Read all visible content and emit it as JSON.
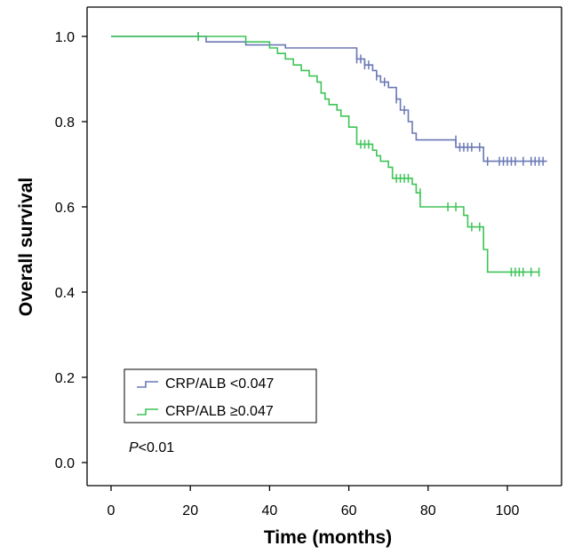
{
  "chart_data": {
    "type": "line",
    "subtype": "kaplan-meier",
    "title": "",
    "xlabel": "Time (months)",
    "ylabel": "Overall survival",
    "xlim": [
      0,
      120
    ],
    "ylim": [
      0,
      1
    ],
    "xticks": [
      0,
      20,
      40,
      60,
      80,
      100,
      120
    ],
    "xtick_labels": [
      "0",
      "20",
      "40",
      "60",
      "80",
      "100",
      "120"
    ],
    "yticks": [
      0.0,
      0.2,
      0.4,
      0.6,
      0.8,
      1.0
    ],
    "ytick_labels": [
      "0.0",
      "0.2",
      "0.4",
      "0.6",
      "0.8",
      "1.0"
    ],
    "grid": false,
    "legend_position": "bottom-left",
    "annotation": {
      "italic": "P",
      "rest": "<0.01"
    },
    "series": [
      {
        "name": "CRP/ALB <0.047",
        "color": "#6a78b5",
        "steps": [
          [
            0,
            1.0
          ],
          [
            24,
            0.987
          ],
          [
            34,
            0.98
          ],
          [
            44,
            0.973
          ],
          [
            62,
            0.947
          ],
          [
            64,
            0.933
          ],
          [
            66,
            0.92
          ],
          [
            67,
            0.907
          ],
          [
            68,
            0.893
          ],
          [
            70,
            0.88
          ],
          [
            72,
            0.853
          ],
          [
            73,
            0.827
          ],
          [
            75,
            0.8
          ],
          [
            76,
            0.773
          ],
          [
            77,
            0.757
          ],
          [
            87,
            0.74
          ],
          [
            94,
            0.707
          ],
          [
            110,
            0.707
          ]
        ],
        "censors": [
          [
            22,
            1.0
          ],
          [
            62,
            0.947
          ],
          [
            63,
            0.947
          ],
          [
            64,
            0.933
          ],
          [
            65,
            0.933
          ],
          [
            67,
            0.907
          ],
          [
            69,
            0.893
          ],
          [
            72,
            0.853
          ],
          [
            74,
            0.827
          ],
          [
            87,
            0.757
          ],
          [
            88,
            0.74
          ],
          [
            89,
            0.74
          ],
          [
            90,
            0.74
          ],
          [
            91,
            0.74
          ],
          [
            93,
            0.74
          ],
          [
            95,
            0.707
          ],
          [
            98,
            0.707
          ],
          [
            99,
            0.707
          ],
          [
            100,
            0.707
          ],
          [
            101,
            0.707
          ],
          [
            102,
            0.707
          ],
          [
            104,
            0.707
          ],
          [
            106,
            0.707
          ],
          [
            107,
            0.707
          ],
          [
            108,
            0.707
          ],
          [
            109,
            0.707
          ]
        ]
      },
      {
        "name": "CRP/ALB ≥0.047",
        "color": "#3ec457",
        "steps": [
          [
            0,
            1.0
          ],
          [
            34,
            0.987
          ],
          [
            40,
            0.973
          ],
          [
            42,
            0.96
          ],
          [
            44,
            0.947
          ],
          [
            46,
            0.933
          ],
          [
            48,
            0.92
          ],
          [
            50,
            0.907
          ],
          [
            52,
            0.893
          ],
          [
            53,
            0.867
          ],
          [
            54,
            0.853
          ],
          [
            55,
            0.84
          ],
          [
            57,
            0.827
          ],
          [
            58,
            0.813
          ],
          [
            60,
            0.787
          ],
          [
            62,
            0.747
          ],
          [
            66,
            0.733
          ],
          [
            67,
            0.72
          ],
          [
            68,
            0.707
          ],
          [
            70,
            0.693
          ],
          [
            71,
            0.667
          ],
          [
            76,
            0.653
          ],
          [
            77,
            0.633
          ],
          [
            78,
            0.6
          ],
          [
            89,
            0.58
          ],
          [
            90,
            0.553
          ],
          [
            94,
            0.5
          ],
          [
            95,
            0.447
          ],
          [
            108,
            0.447
          ]
        ],
        "censors": [
          [
            22,
            1.0
          ],
          [
            63,
            0.747
          ],
          [
            64,
            0.747
          ],
          [
            65,
            0.747
          ],
          [
            72,
            0.667
          ],
          [
            73,
            0.667
          ],
          [
            74,
            0.667
          ],
          [
            75,
            0.667
          ],
          [
            78,
            0.633
          ],
          [
            85,
            0.6
          ],
          [
            87,
            0.6
          ],
          [
            91,
            0.553
          ],
          [
            93,
            0.553
          ],
          [
            101,
            0.447
          ],
          [
            102,
            0.447
          ],
          [
            103,
            0.447
          ],
          [
            104,
            0.447
          ],
          [
            106,
            0.447
          ],
          [
            108,
            0.447
          ]
        ]
      }
    ]
  }
}
